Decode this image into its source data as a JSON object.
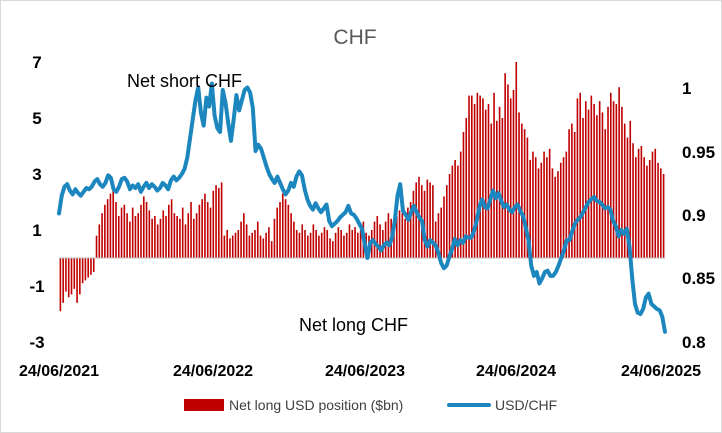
{
  "chart_data": {
    "type": "bar+line",
    "title": "CHF",
    "x_tick_labels": [
      "24/06/2021",
      "24/06/2022",
      "24/06/2023",
      "24/06/2024",
      "24/06/2025"
    ],
    "y_left": {
      "ticks": [
        7,
        5,
        3,
        1,
        -1,
        -3
      ],
      "range": [
        -3,
        7
      ]
    },
    "y_right": {
      "ticks": [
        1,
        0.95,
        0.9,
        0.85,
        0.8
      ],
      "range": [
        0.8,
        1.02
      ]
    },
    "annotations": [
      "Net short CHF",
      "Net long CHF"
    ],
    "grid": false,
    "legend_position": "bottom",
    "series": [
      {
        "name": "Net long USD position ($bn)",
        "type": "bar",
        "axis": "left",
        "color": "#c00000",
        "values": [
          -1.9,
          -1.6,
          -1.2,
          -1.4,
          -1.3,
          -1.1,
          -1.6,
          -1.3,
          -0.9,
          -0.8,
          -0.7,
          -0.6,
          -0.5,
          0.8,
          1.2,
          1.6,
          1.9,
          2.1,
          2.3,
          2.6,
          2.0,
          1.5,
          1.8,
          1.9,
          1.6,
          1.3,
          1.8,
          1.5,
          1.6,
          1.9,
          2.2,
          2.0,
          1.7,
          1.4,
          1.5,
          1.2,
          1.4,
          1.7,
          1.5,
          1.9,
          2.1,
          1.6,
          1.5,
          1.4,
          1.8,
          1.2,
          1.6,
          2.0,
          1.4,
          1.6,
          1.9,
          2.1,
          2.3,
          2.0,
          1.8,
          2.4,
          2.6,
          2.5,
          2.7,
          0.8,
          1.0,
          0.7,
          0.8,
          0.9,
          1.0,
          1.3,
          1.6,
          1.2,
          0.8,
          0.9,
          1.0,
          1.3,
          0.8,
          0.7,
          0.9,
          1.1,
          0.6,
          1.4,
          1.8,
          2.0,
          2.3,
          2.1,
          1.9,
          1.6,
          1.3,
          1.0,
          0.9,
          1.2,
          1.0,
          0.8,
          0.9,
          1.2,
          1.0,
          0.8,
          0.9,
          1.1,
          1.0,
          0.7,
          0.6,
          0.9,
          1.1,
          1.0,
          0.8,
          0.9,
          1.2,
          1.0,
          1.1,
          0.9,
          1.0,
          1.3,
          0.9,
          0.8,
          1.0,
          1.3,
          1.5,
          1.2,
          1.0,
          1.3,
          1.6,
          1.4,
          1.2,
          1.5,
          1.7,
          1.6,
          1.4,
          1.8,
          2.0,
          2.4,
          2.7,
          2.9,
          2.6,
          2.4,
          2.8,
          2.7,
          2.6,
          1.3,
          1.6,
          1.8,
          2.2,
          2.6,
          3.0,
          3.3,
          3.5,
          3.3,
          3.8,
          4.5,
          5.0,
          5.8,
          5.8,
          5.5,
          5.9,
          5.8,
          5.7,
          5.3,
          5.5,
          4.8,
          5.9,
          4.9,
          5.4,
          5.0,
          6.6,
          6.2,
          5.7,
          6.0,
          7.0,
          5.2,
          4.8,
          4.6,
          4.3,
          3.5,
          3.8,
          3.6,
          3.2,
          3.4,
          3.8,
          3.6,
          3.9,
          3.2,
          2.9,
          3.1,
          3.4,
          3.6,
          3.8,
          4.6,
          4.8,
          4.5,
          5.7,
          5.9,
          5.0,
          5.6,
          5.3,
          5.8,
          5.5,
          5.1,
          5.6,
          5.2,
          4.6,
          5.4,
          5.9,
          5.6,
          5.5,
          6.1,
          5.4,
          4.8,
          4.3,
          4.9,
          4.1,
          3.6,
          3.9,
          4.0,
          3.6,
          3.3,
          3.5,
          3.8,
          3.9,
          3.4,
          3.2,
          3.0
        ]
      },
      {
        "name": "USD/CHF",
        "type": "line",
        "axis": "right",
        "color": "#1c86be",
        "values": [
          0.901,
          0.915,
          0.922,
          0.924,
          0.919,
          0.916,
          0.92,
          0.917,
          0.915,
          0.918,
          0.921,
          0.92,
          0.922,
          0.926,
          0.928,
          0.924,
          0.922,
          0.925,
          0.931,
          0.929,
          0.92,
          0.918,
          0.922,
          0.928,
          0.929,
          0.926,
          0.92,
          0.923,
          0.921,
          0.924,
          0.918,
          0.922,
          0.925,
          0.921,
          0.924,
          0.922,
          0.919,
          0.921,
          0.925,
          0.923,
          0.92,
          0.927,
          0.93,
          0.927,
          0.929,
          0.932,
          0.936,
          0.945,
          0.96,
          0.975,
          0.99,
          1.0,
          0.98,
          0.97,
          0.992,
          0.985,
          1.003,
          0.978,
          0.968,
          0.965,
          0.998,
          0.988,
          0.972,
          0.958,
          0.975,
          0.994,
          0.982,
          0.99,
          0.998,
          1.0,
          0.996,
          0.984,
          0.95,
          0.955,
          0.952,
          0.945,
          0.938,
          0.932,
          0.928,
          0.925,
          0.93,
          0.925,
          0.92,
          0.916,
          0.919,
          0.925,
          0.922,
          0.93,
          0.934,
          0.931,
          0.92,
          0.912,
          0.907,
          0.904,
          0.909,
          0.905,
          0.902,
          0.905,
          0.908,
          0.895,
          0.891,
          0.893,
          0.895,
          0.898,
          0.9,
          0.902,
          0.907,
          0.901,
          0.9,
          0.897,
          0.893,
          0.889,
          0.877,
          0.866,
          0.878,
          0.88,
          0.877,
          0.875,
          0.872,
          0.876,
          0.878,
          0.876,
          0.882,
          0.895,
          0.915,
          0.924,
          0.903,
          0.9,
          0.896,
          0.902,
          0.907,
          0.902,
          0.898,
          0.895,
          0.88,
          0.875,
          0.88,
          0.878,
          0.876,
          0.87,
          0.862,
          0.858,
          0.86,
          0.867,
          0.873,
          0.881,
          0.876,
          0.88,
          0.878,
          0.883,
          0.882,
          0.882,
          0.887,
          0.895,
          0.906,
          0.912,
          0.906,
          0.905,
          0.912,
          0.919,
          0.913,
          0.917,
          0.911,
          0.906,
          0.908,
          0.904,
          0.902,
          0.906,
          0.908,
          0.903,
          0.899,
          0.89,
          0.88,
          0.86,
          0.852,
          0.855,
          0.846,
          0.85,
          0.855,
          0.856,
          0.852,
          0.852,
          0.855,
          0.86,
          0.866,
          0.872,
          0.88,
          0.88,
          0.887,
          0.893,
          0.896,
          0.898,
          0.902,
          0.906,
          0.91,
          0.912,
          0.914,
          0.911,
          0.91,
          0.908,
          0.905,
          0.906,
          0.904,
          0.895,
          0.891,
          0.883,
          0.888,
          0.885,
          0.889,
          0.875,
          0.85,
          0.83,
          0.823,
          0.822,
          0.826,
          0.835,
          0.838,
          0.83,
          0.828,
          0.826,
          0.825,
          0.82,
          0.808
        ]
      }
    ]
  }
}
